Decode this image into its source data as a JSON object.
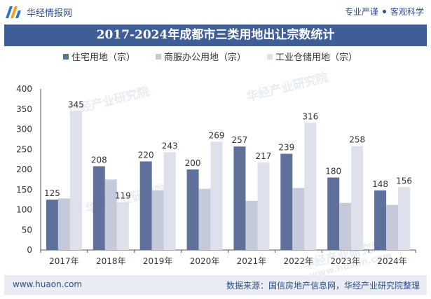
{
  "header": {
    "brand": "华经情报网",
    "tagline_left": "专业严谨",
    "tagline_right": "客观科学"
  },
  "watermark": {
    "text_cn": "华经产业研究院",
    "text_url": "www.huaon.com"
  },
  "footer": {
    "url": "www.huaon.com",
    "source": "数据来源：国信房地产信息网，华经产业研究院整理"
  },
  "colors": {
    "series": [
      "#5f709b",
      "#c4cad9",
      "#dde1ec"
    ],
    "title_bg": "#3f5d97",
    "brand": "#2e4f8c"
  },
  "chart_data": {
    "type": "bar",
    "title": "2017-2024年成都市三类用地出让宗数统计",
    "categories": [
      "2017年",
      "2018年",
      "2019年",
      "2020年",
      "2021年",
      "2022年",
      "2023年",
      "2024年"
    ],
    "series": [
      {
        "name": "住宅用地（宗）",
        "values": [
          125,
          208,
          220,
          200,
          257,
          239,
          180,
          148
        ],
        "labeled": true
      },
      {
        "name": "商服办公用地（宗）",
        "values": [
          128,
          175,
          148,
          152,
          122,
          154,
          117,
          112
        ],
        "labeled": false
      },
      {
        "name": "工业仓储用地（宗）",
        "values": [
          345,
          119,
          243,
          269,
          217,
          316,
          258,
          156
        ],
        "labeled": true
      }
    ],
    "ylim": [
      0,
      400
    ],
    "yticks": [
      0,
      50,
      100,
      150,
      200,
      250,
      300,
      350,
      400
    ],
    "legend_position": "top-center",
    "grid": false
  }
}
